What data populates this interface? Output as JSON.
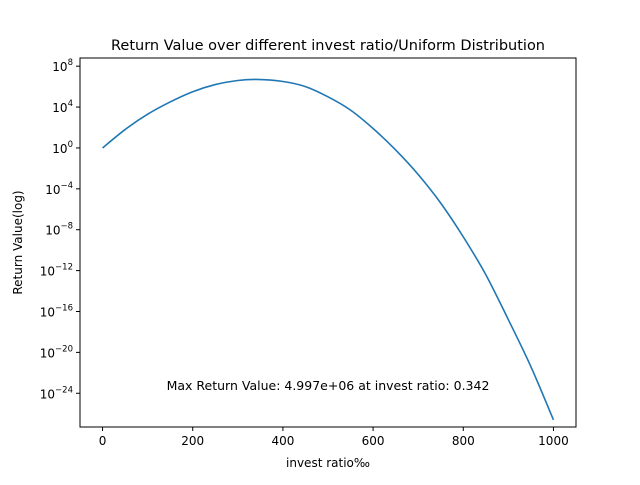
{
  "chart_data": {
    "type": "line",
    "title": "Return Value over different invest ratio/Uniform Distribution",
    "xlabel": "invest ratio‰",
    "ylabel": "Return Value(log)",
    "xscale": "linear",
    "yscale": "log",
    "xlim": [
      -50,
      1050
    ],
    "ylim_log10": [
      -27.3,
      8.8
    ],
    "grid": false,
    "x_ticks": [
      {
        "value": 0,
        "label": "0"
      },
      {
        "value": 200,
        "label": "200"
      },
      {
        "value": 400,
        "label": "400"
      },
      {
        "value": 600,
        "label": "600"
      },
      {
        "value": 800,
        "label": "800"
      },
      {
        "value": 1000,
        "label": "1000"
      }
    ],
    "y_ticks": [
      {
        "exponent": 8,
        "base": "10",
        "exp_label": "8"
      },
      {
        "exponent": 4,
        "base": "10",
        "exp_label": "4"
      },
      {
        "exponent": 0,
        "base": "10",
        "exp_label": "0"
      },
      {
        "exponent": -4,
        "base": "10",
        "exp_label": "−4"
      },
      {
        "exponent": -8,
        "base": "10",
        "exp_label": "−8"
      },
      {
        "exponent": -12,
        "base": "10",
        "exp_label": "−12"
      },
      {
        "exponent": -16,
        "base": "10",
        "exp_label": "−16"
      },
      {
        "exponent": -20,
        "base": "10",
        "exp_label": "−20"
      },
      {
        "exponent": -24,
        "base": "10",
        "exp_label": "−24"
      }
    ],
    "series": [
      {
        "color": "#1f77b4",
        "x": [
          0,
          50,
          100,
          150,
          200,
          250,
          300,
          342,
          400,
          450,
          500,
          550,
          600,
          650,
          700,
          750,
          800,
          850,
          900,
          950,
          1000
        ],
        "log10_y": [
          0.0,
          1.8,
          3.3,
          4.5,
          5.5,
          6.2,
          6.6,
          6.7,
          6.5,
          6.0,
          5.0,
          3.7,
          1.9,
          -0.2,
          -2.6,
          -5.4,
          -8.7,
          -12.4,
          -16.8,
          -21.4,
          -26.6
        ]
      }
    ],
    "annotation": {
      "text": "Max Return Value: 4.997e+06 at invest ratio: 0.342",
      "x": 500,
      "log10_y": -23.7
    }
  }
}
